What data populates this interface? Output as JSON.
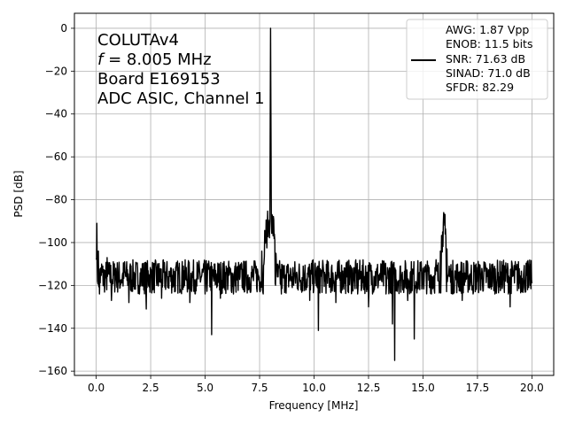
{
  "chart_data": {
    "type": "line",
    "xlabel": "Frequency [MHz]",
    "ylabel": "PSD [dB]",
    "xlim": [
      -1.0,
      21.0
    ],
    "ylim": [
      -162,
      7
    ],
    "x_ticks": [
      0.0,
      2.5,
      5.0,
      7.5,
      10.0,
      12.5,
      15.0,
      17.5,
      20.0
    ],
    "x_tick_labels": [
      "0.0",
      "2.5",
      "5.0",
      "7.5",
      "10.0",
      "12.5",
      "15.0",
      "17.5",
      "20.0"
    ],
    "y_ticks": [
      0,
      -20,
      -40,
      -60,
      -80,
      -100,
      -120,
      -140,
      -160
    ],
    "y_tick_labels": [
      "0",
      "−20",
      "−40",
      "−60",
      "−80",
      "−100",
      "−120",
      "−140",
      "−160"
    ],
    "grid": true,
    "annotation_lines": [
      "COLUTAv4",
      "f = 8.005 MHz",
      "Board E169153",
      "ADC ASIC, Channel  1"
    ],
    "annotation_f_symbol": "f",
    "annotation_f_rest": " = 8.005 MHz",
    "legend_position": "top-right",
    "legend_lines": [
      "AWG: 1.87 Vpp",
      "ENOB: 11.5 bits",
      "SNR: 71.63 dB",
      "SINAD: 71.0 dB",
      "SFDR: 82.29"
    ],
    "series": [
      {
        "color": "#000000",
        "x": [
          0.0,
          0.03,
          0.06,
          0.1,
          0.15,
          0.25,
          0.4,
          0.5,
          0.7,
          0.9,
          1.1,
          1.3,
          1.5,
          1.7,
          2.0,
          2.3,
          2.6,
          3.0,
          3.3,
          3.6,
          4.0,
          4.3,
          4.6,
          5.0,
          5.2,
          5.3,
          5.4,
          5.7,
          6.0,
          6.3,
          6.6,
          7.0,
          7.3,
          7.6,
          7.75,
          7.85,
          7.92,
          7.97,
          8.005,
          8.04,
          8.1,
          8.18,
          8.25,
          8.35,
          8.5,
          8.7,
          9.0,
          9.5,
          9.8,
          10.0,
          10.2,
          10.5,
          11.0,
          11.5,
          12.0,
          12.5,
          13.0,
          13.3,
          13.6,
          13.7,
          13.8,
          14.0,
          14.3,
          14.6,
          14.8,
          15.0,
          15.3,
          15.6,
          15.8,
          15.9,
          16.0,
          16.02,
          16.1,
          16.2,
          16.35,
          16.5,
          16.8,
          17.0,
          17.3,
          17.6,
          18.0,
          18.5,
          19.0,
          19.5,
          19.8,
          20.0
        ],
        "y": [
          -108,
          -91,
          -118,
          -104,
          -124,
          -110,
          -120,
          -107,
          -127,
          -112,
          -121,
          -109,
          -128,
          -114,
          -120,
          -131,
          -110,
          -126,
          -116,
          -123,
          -111,
          -128,
          -117,
          -124,
          -112,
          -143,
          -118,
          -126,
          -113,
          -124,
          -116,
          -122,
          -110,
          -104,
          -98,
          -94,
          -91,
          -90,
          0,
          -90,
          -92,
          -96,
          -105,
          -116,
          -124,
          -115,
          -121,
          -111,
          -127,
          -119,
          -141,
          -118,
          -128,
          -116,
          -124,
          -130,
          -115,
          -124,
          -138,
          -155,
          -122,
          -116,
          -127,
          -145,
          -118,
          -112,
          -121,
          -108,
          -104,
          -95,
          -92,
          -96,
          -103,
          -111,
          -124,
          -115,
          -127,
          -117,
          -124,
          -114,
          -121,
          -116,
          -130,
          -117,
          -122,
          -119
        ]
      }
    ]
  }
}
